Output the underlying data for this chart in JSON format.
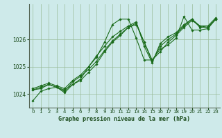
{
  "title": "Graphe pression niveau de la mer (hPa)",
  "bg_color": "#ceeaea",
  "line_color": "#1a6b1a",
  "grid_color": "#99bb99",
  "axis_color": "#556655",
  "text_color": "#1a4a1a",
  "xlim": [
    -0.5,
    23.5
  ],
  "ylim": [
    1023.5,
    1027.3
  ],
  "yticks": [
    1024,
    1025,
    1026
  ],
  "xticks": [
    0,
    1,
    2,
    3,
    4,
    5,
    6,
    7,
    8,
    9,
    10,
    11,
    12,
    13,
    14,
    15,
    16,
    17,
    18,
    19,
    20,
    21,
    22,
    23
  ],
  "series": [
    [
      1023.75,
      1024.1,
      1024.2,
      1024.25,
      1024.15,
      1024.35,
      1024.55,
      1025.0,
      1025.35,
      1025.9,
      1026.55,
      1026.75,
      1026.75,
      1026.05,
      1025.25,
      1025.25,
      1025.65,
      1025.8,
      1026.05,
      1026.85,
      1026.35,
      1026.35,
      1026.4,
      1026.75
    ],
    [
      1024.15,
      1024.2,
      1024.35,
      1024.25,
      1024.1,
      1024.45,
      1024.65,
      1024.9,
      1025.2,
      1025.6,
      1025.95,
      1026.2,
      1026.45,
      1026.55,
      1025.9,
      1025.2,
      1025.75,
      1026.0,
      1026.2,
      1026.5,
      1026.75,
      1026.45,
      1026.45,
      1026.75
    ],
    [
      1024.2,
      1024.3,
      1024.4,
      1024.3,
      1024.2,
      1024.5,
      1024.7,
      1025.0,
      1025.4,
      1025.75,
      1026.1,
      1026.3,
      1026.5,
      1026.65,
      1025.75,
      1025.15,
      1025.85,
      1026.1,
      1026.25,
      1026.55,
      1026.75,
      1026.5,
      1026.5,
      1026.8
    ],
    [
      1024.15,
      1024.25,
      1024.35,
      1024.25,
      1024.05,
      1024.35,
      1024.5,
      1024.8,
      1025.1,
      1025.55,
      1025.9,
      1026.15,
      1026.45,
      1026.6,
      1025.9,
      1025.25,
      1025.55,
      1025.9,
      1026.15,
      1026.45,
      1026.7,
      1026.5,
      1026.45,
      1026.75
    ]
  ]
}
